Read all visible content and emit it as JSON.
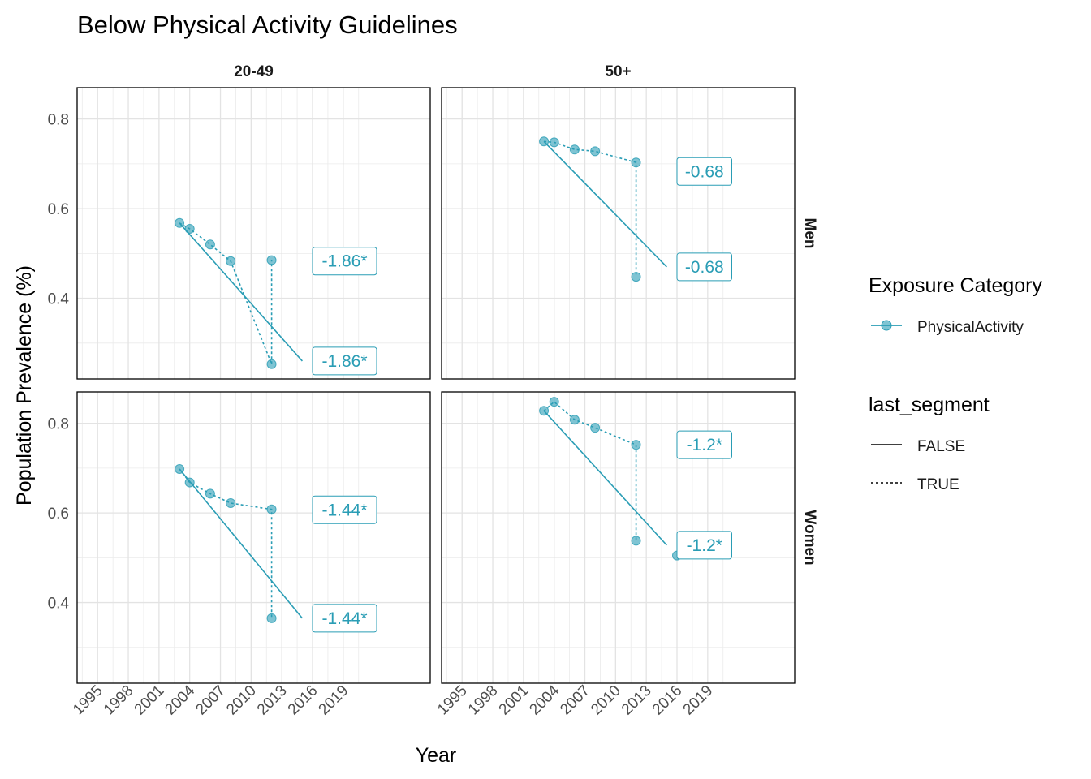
{
  "chart_data": {
    "type": "line",
    "title": "Below Physical Activity Guidelines",
    "xlabel": "Year",
    "ylabel": "Population Prevalence (%)",
    "x_ticks": [
      "1995",
      "1998",
      "2001",
      "2004",
      "2007",
      "2010",
      "2013",
      "2016",
      "2019"
    ],
    "y_ticks": [
      "0.4",
      "0.6",
      "0.8"
    ],
    "xlim": [
      1993,
      2027.5
    ],
    "ylim": [
      0.22,
      0.87
    ],
    "grid": true,
    "legend_position": "right",
    "color": "#2a9db5",
    "col_facets": [
      "20-49",
      "50+"
    ],
    "row_facets": [
      "Men",
      "Women"
    ],
    "legend": {
      "exposure_title": "Exposure Category",
      "exposure_items": [
        "PhysicalActivity"
      ],
      "segment_title": "last_segment",
      "segment_items": [
        "FALSE",
        "TRUE"
      ]
    },
    "panels": [
      {
        "col": "20-49",
        "row": "Men",
        "points": [
          [
            2003,
            0.568
          ],
          [
            2004,
            0.555
          ],
          [
            2006,
            0.52
          ],
          [
            2008,
            0.483
          ],
          [
            2012,
            0.485
          ],
          [
            2012,
            0.253
          ]
        ],
        "dotted_path": [
          [
            2003,
            0.568
          ],
          [
            2004,
            0.555
          ],
          [
            2006,
            0.52
          ],
          [
            2008,
            0.483
          ],
          [
            2012,
            0.253
          ],
          [
            2012,
            0.485
          ]
        ],
        "solid_path": [
          [
            2003,
            0.568
          ],
          [
            2015,
            0.26
          ]
        ],
        "labels": [
          {
            "text": "-1.86*",
            "x": 2016,
            "y": 0.483
          },
          {
            "text": "-1.86*",
            "x": 2016,
            "y": 0.26
          }
        ]
      },
      {
        "col": "50+",
        "row": "Men",
        "points": [
          [
            2003,
            0.75
          ],
          [
            2004,
            0.748
          ],
          [
            2006,
            0.732
          ],
          [
            2008,
            0.728
          ],
          [
            2012,
            0.703
          ],
          [
            2012,
            0.448
          ]
        ],
        "dotted_path": [
          [
            2003,
            0.75
          ],
          [
            2004,
            0.748
          ],
          [
            2006,
            0.732
          ],
          [
            2008,
            0.728
          ],
          [
            2012,
            0.703
          ],
          [
            2012,
            0.448
          ]
        ],
        "solid_path": [
          [
            2003,
            0.75
          ],
          [
            2015,
            0.47
          ]
        ],
        "labels": [
          {
            "text": "-0.68",
            "x": 2016,
            "y": 0.683
          },
          {
            "text": "-0.68",
            "x": 2016,
            "y": 0.47
          }
        ]
      },
      {
        "col": "20-49",
        "row": "Women",
        "points": [
          [
            2003,
            0.698
          ],
          [
            2004,
            0.668
          ],
          [
            2006,
            0.643
          ],
          [
            2008,
            0.622
          ],
          [
            2012,
            0.608
          ],
          [
            2012,
            0.365
          ]
        ],
        "dotted_path": [
          [
            2003,
            0.698
          ],
          [
            2004,
            0.668
          ],
          [
            2006,
            0.643
          ],
          [
            2008,
            0.622
          ],
          [
            2012,
            0.608
          ],
          [
            2012,
            0.365
          ]
        ],
        "solid_path": [
          [
            2003,
            0.698
          ],
          [
            2015,
            0.365
          ]
        ],
        "labels": [
          {
            "text": "-1.44*",
            "x": 2016,
            "y": 0.607
          },
          {
            "text": "-1.44*",
            "x": 2016,
            "y": 0.365
          }
        ]
      },
      {
        "col": "50+",
        "row": "Women",
        "points": [
          [
            2003,
            0.828
          ],
          [
            2004,
            0.848
          ],
          [
            2006,
            0.808
          ],
          [
            2008,
            0.79
          ],
          [
            2012,
            0.752
          ],
          [
            2012,
            0.538
          ],
          [
            2016,
            0.505
          ]
        ],
        "dotted_path": [
          [
            2003,
            0.828
          ],
          [
            2004,
            0.848
          ],
          [
            2006,
            0.808
          ],
          [
            2008,
            0.79
          ],
          [
            2012,
            0.752
          ],
          [
            2012,
            0.538
          ]
        ],
        "solid_path": [
          [
            2003,
            0.828
          ],
          [
            2015,
            0.528
          ]
        ],
        "labels": [
          {
            "text": "-1.2*",
            "x": 2016,
            "y": 0.752
          },
          {
            "text": "-1.2*",
            "x": 2016,
            "y": 0.528
          }
        ]
      }
    ]
  }
}
